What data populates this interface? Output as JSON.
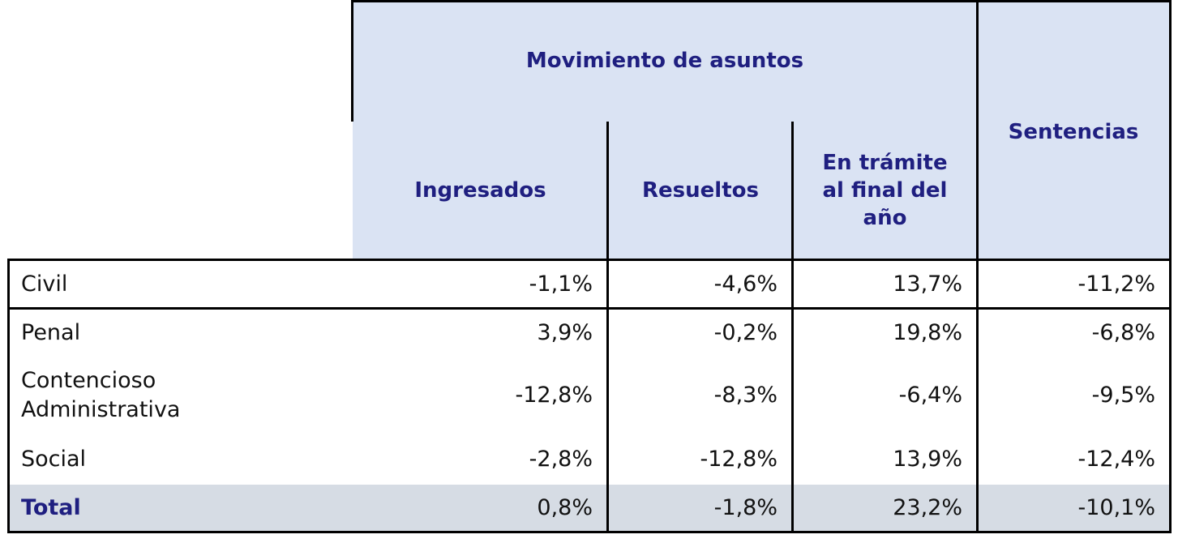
{
  "header": {
    "group_title": "Movimiento de asuntos",
    "sentencias": "Sentencias",
    "columns": [
      "Ingresados",
      "Resueltos",
      "En trámite al final del año"
    ]
  },
  "table": {
    "rows": [
      [
        "Civil",
        "-1,1%",
        "-4,6%",
        "13,7%",
        "-11,2%"
      ],
      [
        "Penal",
        "3,9%",
        "-0,2%",
        "19,8%",
        "-6,8%"
      ],
      [
        "Contencioso\nAdministrativa",
        "-12,8%",
        "-8,3%",
        "-6,4%",
        "-9,5%"
      ],
      [
        "Social",
        "-2,8%",
        "-12,8%",
        "13,9%",
        "-12,4%"
      ],
      [
        "Total",
        "0,8%",
        "-1,8%",
        "23,2%",
        "-10,1%"
      ]
    ]
  }
}
